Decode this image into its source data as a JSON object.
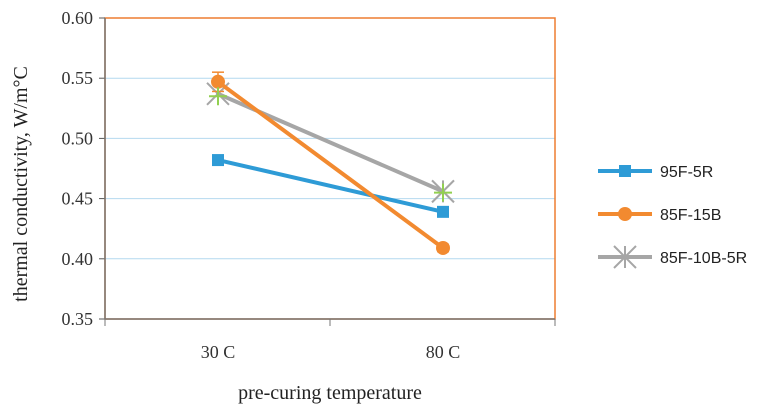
{
  "chart_data": {
    "type": "line",
    "title": "",
    "xlabel": "pre-curing temperature",
    "ylabel": "thermal conductivity, W/m°C",
    "categories": [
      "30 C",
      "80 C"
    ],
    "ylim": [
      0.35,
      0.6
    ],
    "yticks": [
      "0.35",
      "0.40",
      "0.45",
      "0.50",
      "0.55",
      "0.60"
    ],
    "grid": true,
    "legend_position": "right",
    "series": [
      {
        "name": "95F-5R",
        "values": [
          0.482,
          0.439
        ],
        "color": "#2e9bd6",
        "marker": "square"
      },
      {
        "name": "85F-15B",
        "values": [
          0.547,
          0.409
        ],
        "color": "#f28a30",
        "marker": "circle",
        "error_bars": [
          0.008,
          0.003
        ]
      },
      {
        "name": "85F-10B-5R",
        "values": [
          0.537,
          0.456
        ],
        "color": "#a6a6a6",
        "marker": "star"
      }
    ],
    "extra_markers": [
      {
        "category": "30 C",
        "value": 0.535,
        "color": "#92d050",
        "marker": "plus"
      },
      {
        "category": "80 C",
        "value": 0.455,
        "color": "#92d050",
        "marker": "plus"
      }
    ],
    "frame_color": "#ed7d31",
    "grid_color": "#b4d9ef"
  }
}
